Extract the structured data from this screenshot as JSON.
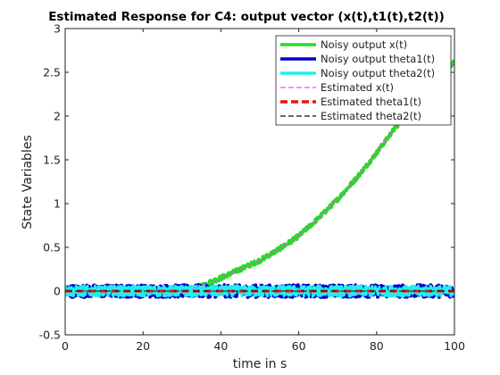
{
  "chart_data": {
    "type": "line",
    "title": "Estimated Response for C4: output vector (x(t),t1(t),t2(t))",
    "xlabel": "time in s",
    "ylabel": "State Variables",
    "xlim": [
      0,
      100
    ],
    "ylim": [
      -0.5,
      3
    ],
    "xticks": [
      0,
      20,
      40,
      60,
      80,
      100
    ],
    "xtick_labels": [
      "0",
      "20",
      "40",
      "60",
      "80",
      "100"
    ],
    "yticks": [
      -0.5,
      0,
      0.5,
      1,
      1.5,
      2,
      2.5,
      3
    ],
    "ytick_labels": [
      "-0.5",
      "0",
      "0.5",
      "1",
      "1.5",
      "2",
      "2.5",
      "3"
    ],
    "grid": false,
    "legend_position": "top-right",
    "series": [
      {
        "name": "Noisy output x(t)",
        "color": "#22dd22",
        "style": "solid",
        "width": "thick",
        "noise": 0.03,
        "x": [
          0,
          30,
          32,
          35,
          40,
          45,
          50,
          55,
          60,
          65,
          70,
          75,
          80,
          85,
          90,
          95,
          100
        ],
        "y": [
          0,
          0,
          0.02,
          0.06,
          0.15,
          0.25,
          0.35,
          0.48,
          0.63,
          0.83,
          1.05,
          1.3,
          1.58,
          1.88,
          2.08,
          2.38,
          2.62
        ]
      },
      {
        "name": "Noisy output theta1(t)",
        "color": "#0000cc",
        "style": "solid",
        "width": "thick",
        "noise": 0.07,
        "x": [
          0,
          100
        ],
        "y": [
          0,
          0
        ]
      },
      {
        "name": "Noisy output theta2(t)",
        "color": "#22eeee",
        "style": "solid",
        "width": "thick",
        "noise": 0.06,
        "x": [
          0,
          100
        ],
        "y": [
          0,
          0
        ]
      },
      {
        "name": "Estimated x(t)",
        "color": "#ff44ff",
        "style": "dashed",
        "width": "thin",
        "noise": 0,
        "x": [
          0,
          30,
          32,
          35,
          40,
          45,
          50,
          55,
          60,
          65,
          70,
          75,
          80,
          85,
          90,
          95,
          100
        ],
        "y": [
          0,
          0,
          0.02,
          0.06,
          0.15,
          0.25,
          0.35,
          0.48,
          0.63,
          0.83,
          1.05,
          1.3,
          1.58,
          1.88,
          2.08,
          2.38,
          2.62
        ]
      },
      {
        "name": "Estimated theta1(t)",
        "color": "#ee1111",
        "style": "dashed",
        "width": "thick",
        "noise": 0,
        "x": [
          0,
          100
        ],
        "y": [
          0,
          0
        ]
      },
      {
        "name": "Estimated theta2(t)",
        "color": "#111111",
        "style": "dashed",
        "width": "thin",
        "noise": 0,
        "x": [
          0,
          100
        ],
        "y": [
          0,
          0
        ]
      }
    ]
  }
}
